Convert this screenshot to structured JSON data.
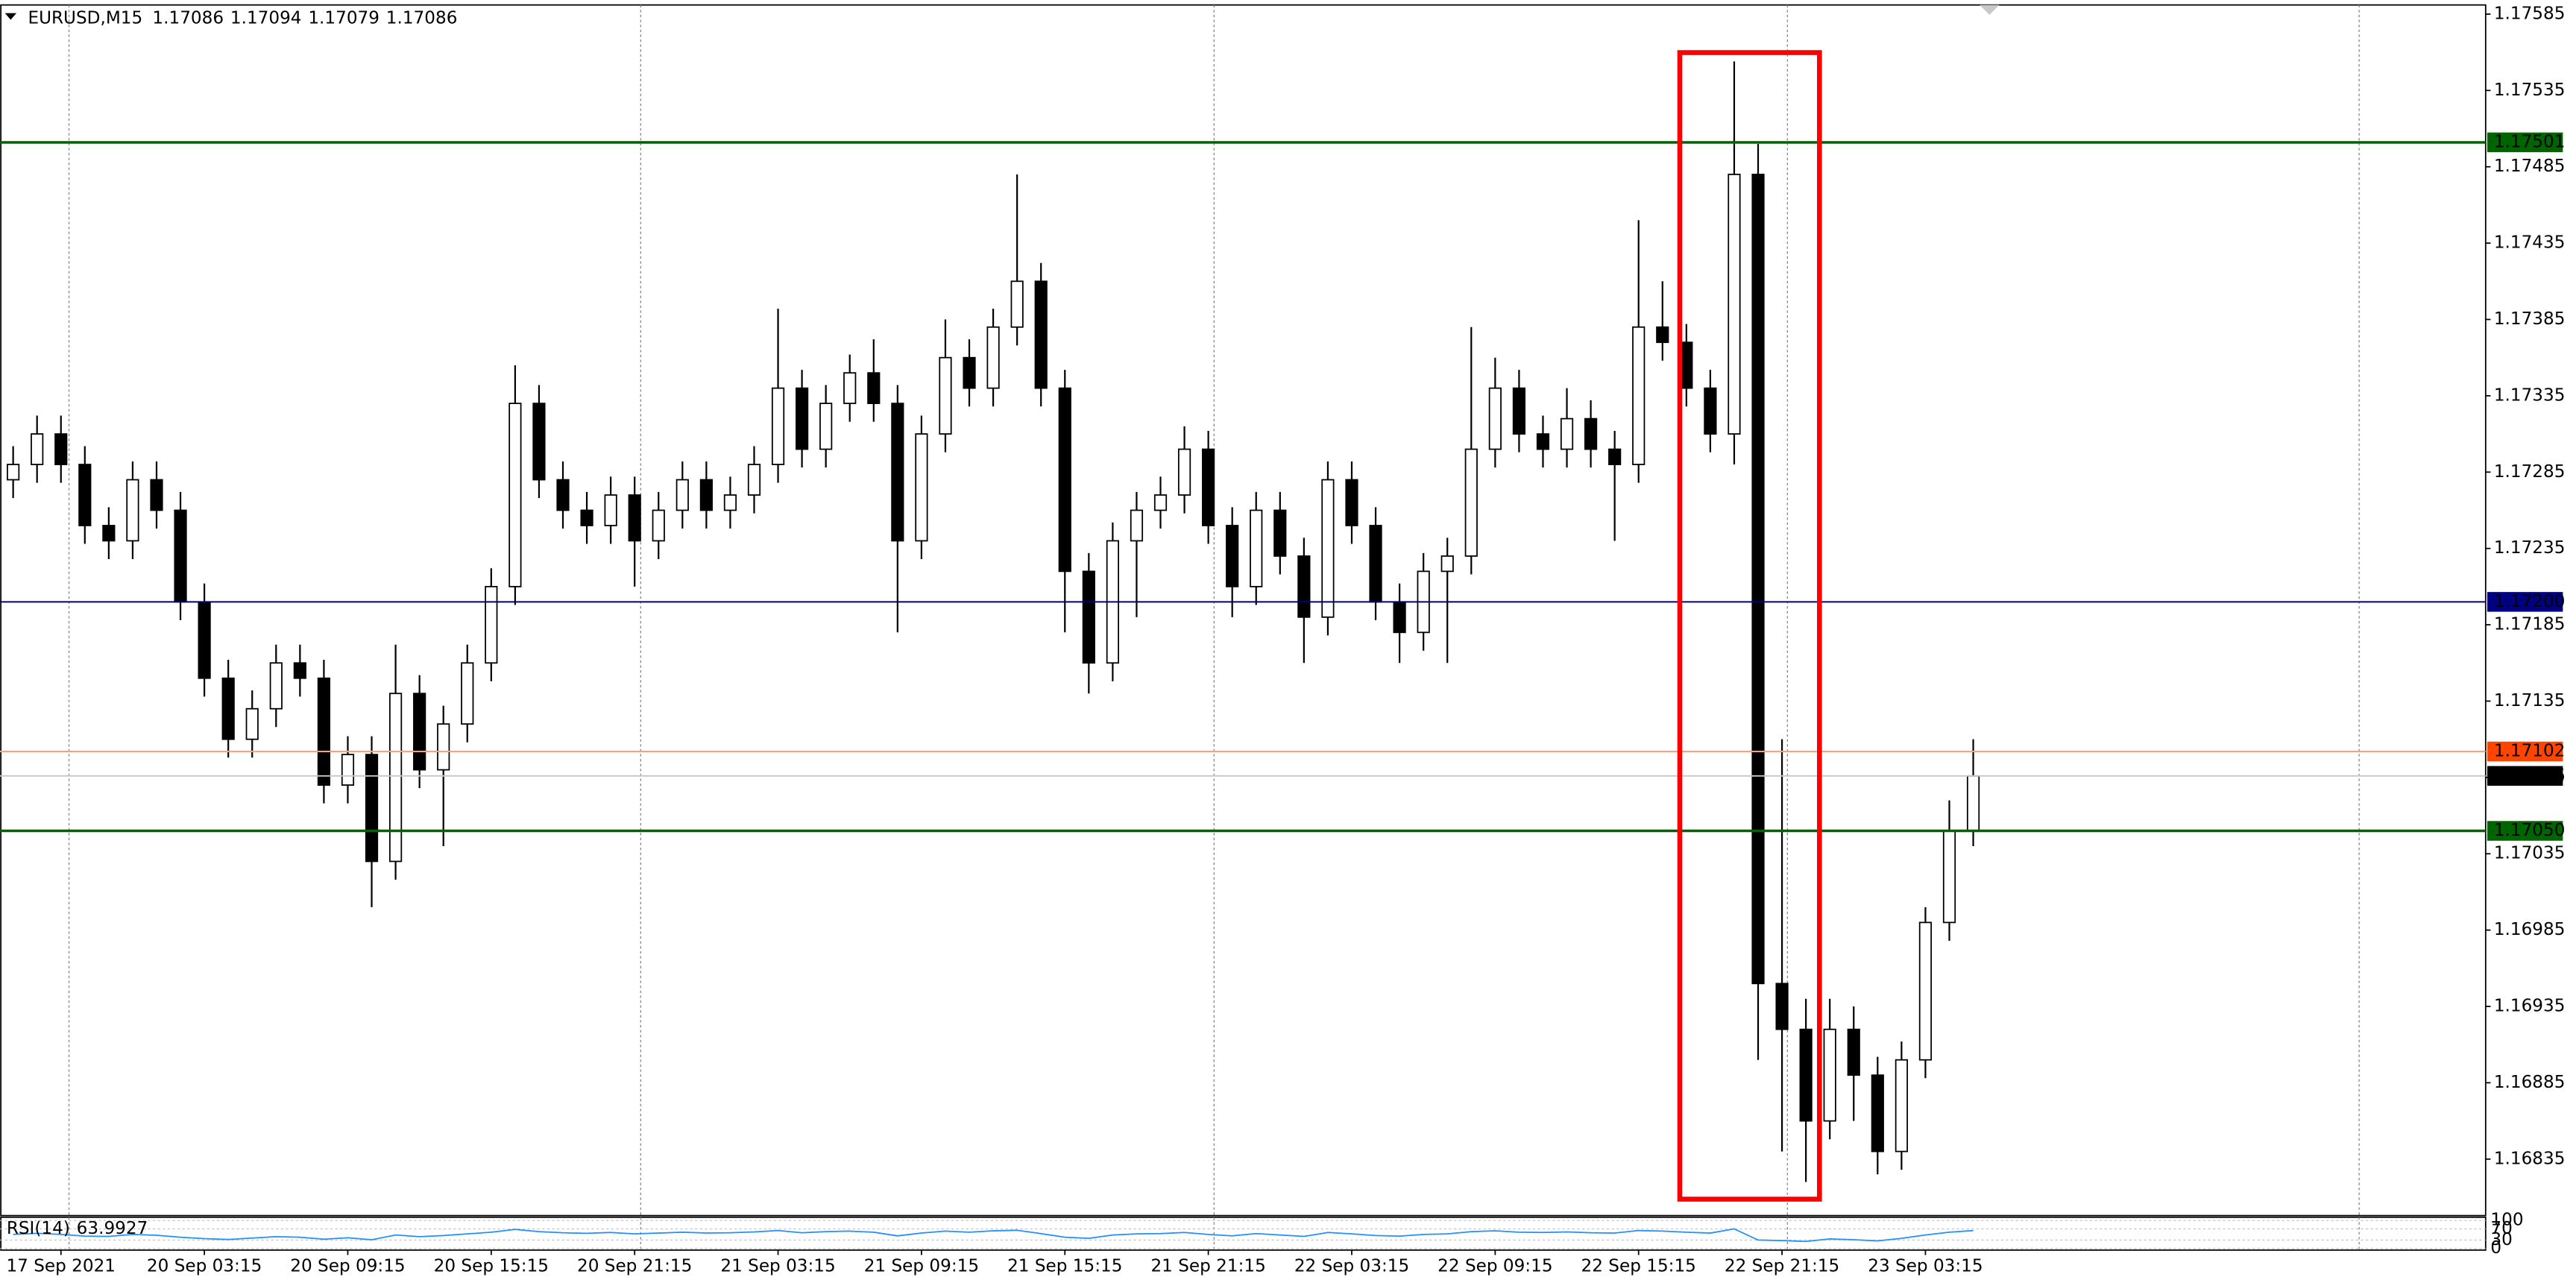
{
  "chart_data": {
    "type": "candlestick",
    "title": "EURUSD,M15",
    "quote": [
      1.17086,
      1.17094,
      1.17079,
      1.17086
    ],
    "categories": [
      null,
      null,
      "17 Sep 2021",
      null,
      null,
      null,
      null,
      null,
      "20 Sep 03:15",
      null,
      null,
      null,
      null,
      null,
      "20 Sep 09:15",
      null,
      null,
      null,
      null,
      null,
      "20 Sep 15:15",
      null,
      null,
      null,
      null,
      null,
      "20 Sep 21:15",
      null,
      null,
      null,
      null,
      null,
      "21 Sep 03:15",
      null,
      null,
      null,
      null,
      null,
      "21 Sep 09:15",
      null,
      null,
      null,
      null,
      null,
      "21 Sep 15:15",
      null,
      null,
      null,
      null,
      null,
      "21 Sep 21:15",
      null,
      null,
      null,
      null,
      null,
      "22 Sep 03:15",
      null,
      null,
      null,
      null,
      null,
      "22 Sep 09:15",
      null,
      null,
      null,
      null,
      null,
      "22 Sep 15:15",
      null,
      null,
      null,
      null,
      null,
      "22 Sep 21:15",
      null,
      null,
      null,
      null,
      null,
      "23 Sep 03:15",
      null,
      null
    ],
    "candles": [
      [
        1.1728,
        1.17302,
        1.17268,
        1.1729
      ],
      [
        1.1729,
        1.17322,
        1.17278,
        1.1731
      ],
      [
        1.1731,
        1.17322,
        1.17278,
        1.1729
      ],
      [
        1.1729,
        1.17302,
        1.17238,
        1.1725
      ],
      [
        1.1725,
        1.17262,
        1.17228,
        1.1724
      ],
      [
        1.1724,
        1.17292,
        1.17228,
        1.1728
      ],
      [
        1.1728,
        1.17292,
        1.17248,
        1.1726
      ],
      [
        1.1726,
        1.17272,
        1.17188,
        1.172
      ],
      [
        1.172,
        1.17212,
        1.17138,
        1.1715
      ],
      [
        1.1715,
        1.17162,
        1.17098,
        1.1711
      ],
      [
        1.1711,
        1.17142,
        1.17098,
        1.1713
      ],
      [
        1.1713,
        1.17172,
        1.17118,
        1.1716
      ],
      [
        1.1716,
        1.17172,
        1.17138,
        1.1715
      ],
      [
        1.1715,
        1.17162,
        1.17068,
        1.1708
      ],
      [
        1.1708,
        1.17112,
        1.17068,
        1.171
      ],
      [
        1.171,
        1.17112,
        1.17,
        1.1703
      ],
      [
        1.1703,
        1.17172,
        1.17018,
        1.1714
      ],
      [
        1.1714,
        1.17152,
        1.17078,
        1.1709
      ],
      [
        1.1709,
        1.17132,
        1.1704,
        1.1712
      ],
      [
        1.1712,
        1.17172,
        1.17108,
        1.1716
      ],
      [
        1.1716,
        1.17222,
        1.17148,
        1.1721
      ],
      [
        1.1721,
        1.17355,
        1.17198,
        1.1733
      ],
      [
        1.1733,
        1.17342,
        1.17268,
        1.1728
      ],
      [
        1.1728,
        1.17292,
        1.17248,
        1.1726
      ],
      [
        1.1726,
        1.17272,
        1.17238,
        1.1725
      ],
      [
        1.1725,
        1.17282,
        1.17238,
        1.1727
      ],
      [
        1.1727,
        1.17282,
        1.1721,
        1.1724
      ],
      [
        1.1724,
        1.17272,
        1.17228,
        1.1726
      ],
      [
        1.1726,
        1.17292,
        1.17248,
        1.1728
      ],
      [
        1.1728,
        1.17292,
        1.17248,
        1.1726
      ],
      [
        1.1726,
        1.17282,
        1.17248,
        1.1727
      ],
      [
        1.1727,
        1.17302,
        1.17258,
        1.1729
      ],
      [
        1.1729,
        1.17392,
        1.17278,
        1.1734
      ],
      [
        1.1734,
        1.17352,
        1.17288,
        1.173
      ],
      [
        1.173,
        1.17342,
        1.17288,
        1.1733
      ],
      [
        1.1733,
        1.17362,
        1.17318,
        1.1735
      ],
      [
        1.1735,
        1.17372,
        1.17318,
        1.1733
      ],
      [
        1.1733,
        1.17342,
        1.1718,
        1.1724
      ],
      [
        1.1724,
        1.17322,
        1.17228,
        1.1731
      ],
      [
        1.1731,
        1.17385,
        1.17298,
        1.1736
      ],
      [
        1.1736,
        1.17372,
        1.17328,
        1.1734
      ],
      [
        1.1734,
        1.17392,
        1.17328,
        1.1738
      ],
      [
        1.1738,
        1.1748,
        1.17368,
        1.1741
      ],
      [
        1.1741,
        1.17422,
        1.17328,
        1.1734
      ],
      [
        1.1734,
        1.17352,
        1.1718,
        1.1722
      ],
      [
        1.1722,
        1.17232,
        1.1714,
        1.1716
      ],
      [
        1.1716,
        1.17252,
        1.17148,
        1.1724
      ],
      [
        1.1724,
        1.17272,
        1.1719,
        1.1726
      ],
      [
        1.1726,
        1.17282,
        1.17248,
        1.1727
      ],
      [
        1.1727,
        1.17315,
        1.17258,
        1.173
      ],
      [
        1.173,
        1.17312,
        1.17238,
        1.1725
      ],
      [
        1.1725,
        1.17262,
        1.1719,
        1.1721
      ],
      [
        1.1721,
        1.17272,
        1.17198,
        1.1726
      ],
      [
        1.1726,
        1.17272,
        1.17218,
        1.1723
      ],
      [
        1.1723,
        1.17242,
        1.1716,
        1.1719
      ],
      [
        1.1719,
        1.17292,
        1.17178,
        1.1728
      ],
      [
        1.1728,
        1.17292,
        1.17238,
        1.1725
      ],
      [
        1.1725,
        1.17262,
        1.17188,
        1.172
      ],
      [
        1.172,
        1.17212,
        1.1716,
        1.1718
      ],
      [
        1.1718,
        1.17232,
        1.17168,
        1.1722
      ],
      [
        1.1722,
        1.17242,
        1.1716,
        1.1723
      ],
      [
        1.1723,
        1.1738,
        1.17218,
        1.173
      ],
      [
        1.173,
        1.1736,
        1.17288,
        1.1734
      ],
      [
        1.1734,
        1.17352,
        1.17298,
        1.1731
      ],
      [
        1.1731,
        1.17322,
        1.17288,
        1.173
      ],
      [
        1.173,
        1.1734,
        1.17288,
        1.1732
      ],
      [
        1.1732,
        1.17332,
        1.17288,
        1.173
      ],
      [
        1.173,
        1.17312,
        1.1724,
        1.1729
      ],
      [
        1.1729,
        1.1745,
        1.17278,
        1.1738
      ],
      [
        1.1738,
        1.1741,
        1.17358,
        1.1737
      ],
      [
        1.1737,
        1.17382,
        1.17328,
        1.1734
      ],
      [
        1.1734,
        1.17352,
        1.17298,
        1.1731
      ],
      [
        1.1731,
        1.17554,
        1.1729,
        1.1748
      ],
      [
        1.1748,
        1.175,
        1.169,
        1.1695
      ],
      [
        1.1695,
        1.1711,
        1.1684,
        1.1692
      ],
      [
        1.1692,
        1.1694,
        1.1682,
        1.1686
      ],
      [
        1.1686,
        1.1694,
        1.16848,
        1.1692
      ],
      [
        1.1692,
        1.16935,
        1.1686,
        1.1689
      ],
      [
        1.1689,
        1.16902,
        1.16825,
        1.1684
      ],
      [
        1.1684,
        1.16912,
        1.16828,
        1.169
      ],
      [
        1.169,
        1.17,
        1.16888,
        1.1699
      ],
      [
        1.1699,
        1.1707,
        1.16978,
        1.1705
      ],
      [
        1.1705,
        1.1711,
        1.1704,
        1.17086
      ]
    ],
    "up_color": "#ffffff",
    "down_color": "#000000",
    "wick_color": "#000000",
    "ylim": [
      1.16798,
      1.17591
    ],
    "yticks": [
      1.17585,
      1.17535,
      1.17485,
      1.17435,
      1.17385,
      1.17335,
      1.17285,
      1.17235,
      1.17185,
      1.17135,
      1.17085,
      1.17035,
      1.16985,
      1.16935,
      1.16885,
      1.16835
    ],
    "levels": [
      {
        "price": 1.17501,
        "label": "1.17501",
        "color": "#006400",
        "label_color": "#006400"
      },
      {
        "price": 1.172,
        "label": "1.17200",
        "color": "#000080",
        "label_color": "#000080"
      },
      {
        "price": 1.17102,
        "label": "1.17102",
        "color": "#ffa07a",
        "label_color": "#ff4500"
      },
      {
        "price": 1.17086,
        "label": "1.17086",
        "color": "#c8c8c8",
        "label_color": "#000000"
      },
      {
        "price": 1.1705,
        "label": "1.17050",
        "color": "#006400",
        "label_color": "#006400"
      }
    ],
    "indicator": {
      "type": "line",
      "name": "RSI(14)",
      "color": "#1e90ff",
      "ylim": [
        0,
        100
      ],
      "yticks": [
        0,
        30,
        70,
        100
      ],
      "values": [
        50,
        54,
        50,
        44,
        43,
        50,
        47,
        40,
        35,
        32,
        37,
        42,
        40,
        33,
        38,
        31,
        48,
        42,
        46,
        52,
        58,
        68,
        60,
        56,
        54,
        57,
        52,
        55,
        58,
        55,
        56,
        59,
        64,
        56,
        60,
        62,
        58,
        45,
        55,
        62,
        58,
        63,
        65,
        53,
        40,
        36,
        48,
        52,
        53,
        57,
        50,
        45,
        53,
        48,
        43,
        57,
        52,
        46,
        44,
        50,
        52,
        60,
        63,
        58,
        57,
        59,
        56,
        55,
        64,
        62,
        58,
        55,
        70,
        30,
        28,
        25,
        34,
        31,
        27,
        36,
        48,
        58,
        63.9927
      ]
    }
  }
}
